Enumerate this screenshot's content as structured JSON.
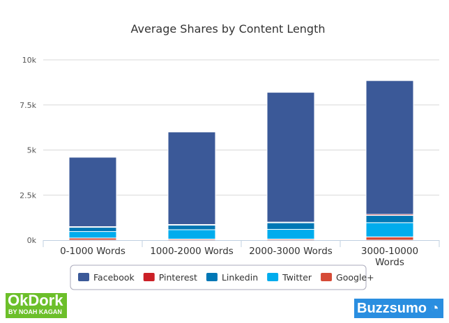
{
  "chart_data": {
    "type": "bar",
    "stacked": true,
    "title": "Average Shares by Content Length",
    "categories": [
      "0-1000 Words",
      "1000-2000 Words",
      "2000-3000 Words",
      "3000-10000 Words"
    ],
    "series": [
      {
        "name": "Google+",
        "color": "#d64b37",
        "values": [
          120,
          60,
          60,
          180
        ]
      },
      {
        "name": "Twitter",
        "color": "#00aced",
        "values": [
          360,
          520,
          540,
          790
        ]
      },
      {
        "name": "Linkedin",
        "color": "#0077b5",
        "values": [
          250,
          270,
          380,
          400
        ]
      },
      {
        "name": "Pinterest",
        "color": "#cb2027",
        "values": [
          20,
          20,
          20,
          60
        ]
      },
      {
        "name": "Facebook",
        "color": "#3b5998",
        "values": [
          3850,
          5130,
          7200,
          7420
        ]
      }
    ],
    "legend_order": [
      "Facebook",
      "Pinterest",
      "Linkedin",
      "Twitter",
      "Google+"
    ],
    "ylim": [
      0,
      10000
    ],
    "yticks": [
      "0k",
      "2.5k",
      "5k",
      "7.5k",
      "10k"
    ],
    "grid": true,
    "legend": "bottom"
  },
  "logos": {
    "left": "OkDork",
    "left_sub": "BY NOAH KAGAN",
    "right": "Buzzsumo"
  }
}
